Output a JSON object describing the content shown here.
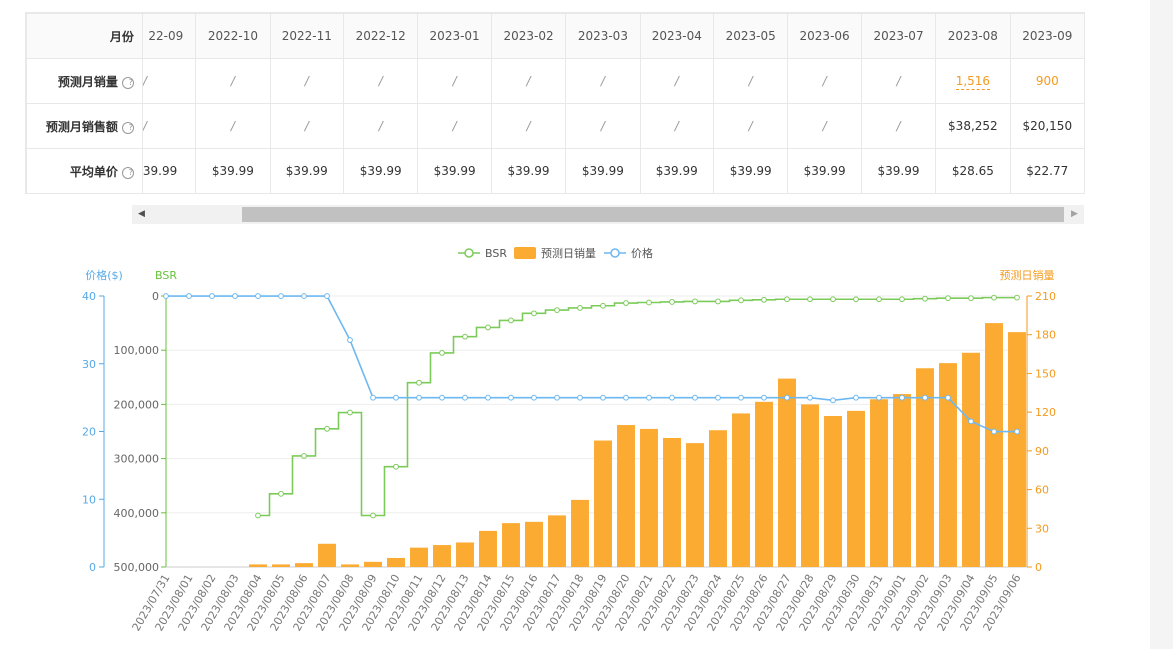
{
  "table": {
    "header_label": "月份",
    "months": [
      "22-09",
      "2022-10",
      "2022-11",
      "2022-12",
      "2023-01",
      "2023-02",
      "2023-03",
      "2023-04",
      "2023-05",
      "2023-06",
      "2023-07",
      "2023-08",
      "2023-09"
    ],
    "rows": [
      {
        "label": "预测月销量",
        "values": [
          "/",
          "/",
          "/",
          "/",
          "/",
          "/",
          "/",
          "/",
          "/",
          "/",
          "/",
          "1,516",
          "900"
        ]
      },
      {
        "label": "预测月销售额",
        "values": [
          "/",
          "/",
          "/",
          "/",
          "/",
          "/",
          "/",
          "/",
          "/",
          "/",
          "/",
          "$38,252",
          "$20,150"
        ]
      },
      {
        "label": "平均单价",
        "values": [
          "39.99",
          "$39.99",
          "$39.99",
          "$39.99",
          "$39.99",
          "$39.99",
          "$39.99",
          "$39.99",
          "$39.99",
          "$39.99",
          "$39.99",
          "$28.65",
          "$22.77"
        ]
      }
    ],
    "help_icon": "question-circle-icon"
  },
  "scrollbar": {
    "left_icon": "triangle-left-icon",
    "right_icon": "triangle-right-icon"
  },
  "chart_data": {
    "type": "bar+line",
    "legend": [
      {
        "name": "BSR",
        "icon": "line-circle-icon",
        "color": "#7ccb5a"
      },
      {
        "name": "预测日销量",
        "icon": "rect-icon",
        "color": "#fbab32"
      },
      {
        "name": "价格",
        "icon": "line-circle-icon",
        "color": "#6db8f0"
      }
    ],
    "legend_position": "top-center",
    "axes": {
      "price": {
        "label": "价格($)",
        "min": 0,
        "max": 40,
        "ticks": [
          "0",
          "10",
          "20",
          "30",
          "40"
        ],
        "color": "#56a9e8"
      },
      "bsr": {
        "label": "BSR",
        "min": 0,
        "max": 500000,
        "inverted": true,
        "ticks": [
          "0",
          "100,000",
          "200,000",
          "300,000",
          "400,000",
          "500,000"
        ],
        "color": "#67c23a"
      },
      "sales": {
        "label": "预测日销量",
        "min": 0,
        "max": 210,
        "ticks": [
          "0",
          "30",
          "60",
          "90",
          "120",
          "150",
          "180",
          "210"
        ],
        "color": "#f39a1e"
      }
    },
    "x": [
      "2023/07/31",
      "2023/08/01",
      "2023/08/02",
      "2023/08/03",
      "2023/08/04",
      "2023/08/05",
      "2023/08/06",
      "2023/08/07",
      "2023/08/08",
      "2023/08/09",
      "2023/08/10",
      "2023/08/11",
      "2023/08/12",
      "2023/08/13",
      "2023/08/14",
      "2023/08/15",
      "2023/08/16",
      "2023/08/17",
      "2023/08/18",
      "2023/08/19",
      "2023/08/20",
      "2023/08/21",
      "2023/08/22",
      "2023/08/23",
      "2023/08/24",
      "2023/08/25",
      "2023/08/26",
      "2023/08/27",
      "2023/08/28",
      "2023/08/29",
      "2023/08/30",
      "2023/08/31",
      "2023/09/01",
      "2023/09/02",
      "2023/09/03",
      "2023/09/04",
      "2023/09/05",
      "2023/09/06"
    ],
    "series": [
      {
        "name": "预测日销量",
        "kind": "bar",
        "axis": "sales",
        "values": [
          0,
          0,
          0,
          0,
          2,
          2,
          3,
          18,
          2,
          4,
          7,
          15,
          17,
          19,
          28,
          34,
          35,
          40,
          52,
          98,
          110,
          107,
          100,
          96,
          106,
          119,
          128,
          146,
          126,
          117,
          121,
          130,
          134,
          154,
          158,
          166,
          189,
          182
        ]
      },
      {
        "name": "BSR",
        "kind": "step-line",
        "axis": "bsr",
        "values": [
          null,
          null,
          null,
          null,
          405000,
          365000,
          295000,
          245000,
          215000,
          405000,
          315000,
          160000,
          105000,
          75000,
          58000,
          45000,
          32000,
          26000,
          22000,
          18000,
          13000,
          12000,
          11000,
          10000,
          10000,
          8000,
          7000,
          6000,
          6000,
          6000,
          6000,
          6000,
          6000,
          5000,
          4000,
          4000,
          3000,
          3000
        ]
      },
      {
        "name": "价格",
        "kind": "line",
        "axis": "price",
        "values": [
          39.99,
          39.99,
          39.99,
          39.99,
          39.99,
          39.99,
          39.99,
          39.99,
          33.5,
          24.99,
          24.99,
          24.99,
          24.99,
          24.99,
          24.99,
          24.99,
          24.99,
          24.99,
          24.99,
          24.99,
          24.99,
          24.99,
          24.99,
          24.99,
          24.99,
          24.99,
          24.99,
          24.99,
          24.99,
          24.6,
          24.99,
          24.99,
          24.99,
          24.99,
          24.99,
          21.5,
          19.99,
          19.99
        ]
      }
    ]
  }
}
